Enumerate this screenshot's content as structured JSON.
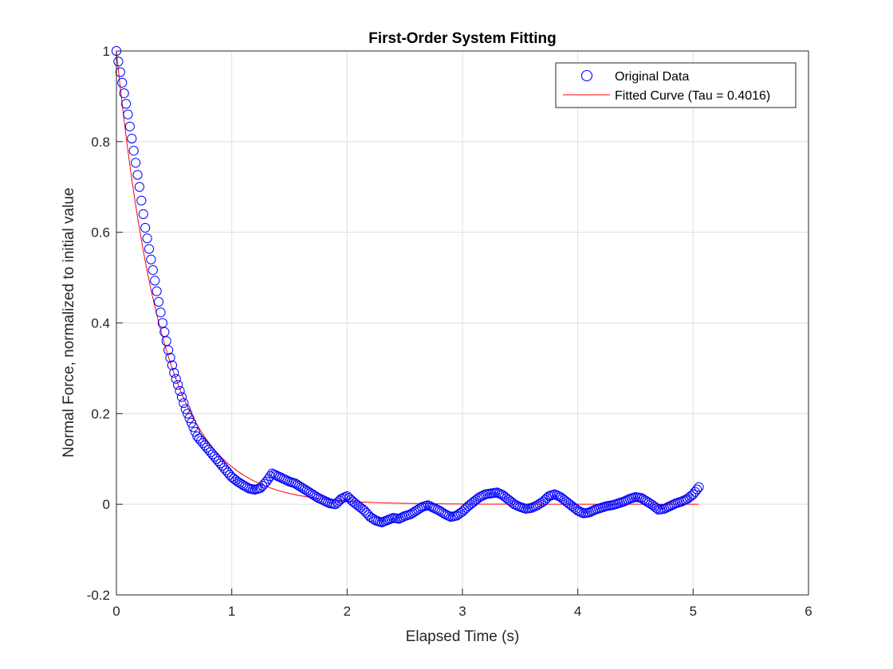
{
  "chart_data": {
    "type": "scatter",
    "title": "First-Order System Fitting",
    "xlabel": "Elapsed Time (s)",
    "ylabel": "Normal Force, normalized to initial value",
    "xlim": [
      0,
      6
    ],
    "ylim": [
      -0.2,
      1
    ],
    "xticks": [
      0,
      1,
      2,
      3,
      4,
      5,
      6
    ],
    "yticks": [
      -0.2,
      0,
      0.2,
      0.4,
      0.6,
      0.8,
      1
    ],
    "grid": true,
    "legend_position": "top-right",
    "series": [
      {
        "name": "Original Data",
        "style": "markers",
        "marker": "circle",
        "color": "#0000ff",
        "x_start": 0,
        "x_end": 5.05,
        "points": [
          [
            0.0,
            1.0
          ],
          [
            0.05,
            0.93
          ],
          [
            0.1,
            0.86
          ],
          [
            0.15,
            0.78
          ],
          [
            0.2,
            0.7
          ],
          [
            0.25,
            0.61
          ],
          [
            0.3,
            0.54
          ],
          [
            0.35,
            0.47
          ],
          [
            0.4,
            0.4
          ],
          [
            0.45,
            0.34
          ],
          [
            0.5,
            0.29
          ],
          [
            0.55,
            0.25
          ],
          [
            0.6,
            0.21
          ],
          [
            0.65,
            0.18
          ],
          [
            0.7,
            0.15
          ],
          [
            0.75,
            0.135
          ],
          [
            0.8,
            0.12
          ],
          [
            0.85,
            0.105
          ],
          [
            0.9,
            0.09
          ],
          [
            0.95,
            0.075
          ],
          [
            1.0,
            0.06
          ],
          [
            1.05,
            0.05
          ],
          [
            1.1,
            0.042
          ],
          [
            1.15,
            0.035
          ],
          [
            1.2,
            0.032
          ],
          [
            1.25,
            0.036
          ],
          [
            1.3,
            0.05
          ],
          [
            1.35,
            0.068
          ],
          [
            1.4,
            0.062
          ],
          [
            1.45,
            0.056
          ],
          [
            1.5,
            0.05
          ],
          [
            1.55,
            0.046
          ],
          [
            1.6,
            0.038
          ],
          [
            1.65,
            0.03
          ],
          [
            1.7,
            0.022
          ],
          [
            1.75,
            0.014
          ],
          [
            1.8,
            0.008
          ],
          [
            1.85,
            0.002
          ],
          [
            1.9,
            0.0
          ],
          [
            1.95,
            0.012
          ],
          [
            2.0,
            0.018
          ],
          [
            2.05,
            0.006
          ],
          [
            2.1,
            -0.004
          ],
          [
            2.15,
            -0.014
          ],
          [
            2.2,
            -0.028
          ],
          [
            2.25,
            -0.036
          ],
          [
            2.3,
            -0.04
          ],
          [
            2.35,
            -0.035
          ],
          [
            2.4,
            -0.03
          ],
          [
            2.45,
            -0.032
          ],
          [
            2.5,
            -0.026
          ],
          [
            2.55,
            -0.022
          ],
          [
            2.6,
            -0.014
          ],
          [
            2.65,
            -0.006
          ],
          [
            2.7,
            -0.002
          ],
          [
            2.75,
            -0.008
          ],
          [
            2.8,
            -0.014
          ],
          [
            2.85,
            -0.022
          ],
          [
            2.9,
            -0.028
          ],
          [
            2.95,
            -0.025
          ],
          [
            3.0,
            -0.016
          ],
          [
            3.05,
            -0.004
          ],
          [
            3.1,
            0.006
          ],
          [
            3.15,
            0.016
          ],
          [
            3.2,
            0.022
          ],
          [
            3.25,
            0.024
          ],
          [
            3.3,
            0.026
          ],
          [
            3.35,
            0.02
          ],
          [
            3.4,
            0.01
          ],
          [
            3.45,
            0.0
          ],
          [
            3.5,
            -0.006
          ],
          [
            3.55,
            -0.01
          ],
          [
            3.6,
            -0.008
          ],
          [
            3.65,
            -0.002
          ],
          [
            3.7,
            0.006
          ],
          [
            3.75,
            0.018
          ],
          [
            3.8,
            0.022
          ],
          [
            3.85,
            0.016
          ],
          [
            3.9,
            0.006
          ],
          [
            3.95,
            -0.004
          ],
          [
            4.0,
            -0.014
          ],
          [
            4.05,
            -0.02
          ],
          [
            4.1,
            -0.018
          ],
          [
            4.15,
            -0.012
          ],
          [
            4.2,
            -0.008
          ],
          [
            4.25,
            -0.004
          ],
          [
            4.3,
            -0.002
          ],
          [
            4.35,
            0.002
          ],
          [
            4.4,
            0.006
          ],
          [
            4.45,
            0.012
          ],
          [
            4.5,
            0.016
          ],
          [
            4.55,
            0.014
          ],
          [
            4.6,
            0.006
          ],
          [
            4.65,
            -0.002
          ],
          [
            4.7,
            -0.012
          ],
          [
            4.75,
            -0.01
          ],
          [
            4.8,
            -0.004
          ],
          [
            4.85,
            0.002
          ],
          [
            4.9,
            0.006
          ],
          [
            4.95,
            0.012
          ],
          [
            5.0,
            0.022
          ],
          [
            5.05,
            0.038
          ]
        ]
      },
      {
        "name": "Fitted Curve (Tau = 0.4016)",
        "style": "line",
        "color": "#ff0000",
        "tau": 0.4016,
        "x_start": 0,
        "x_end": 5.05
      }
    ]
  }
}
